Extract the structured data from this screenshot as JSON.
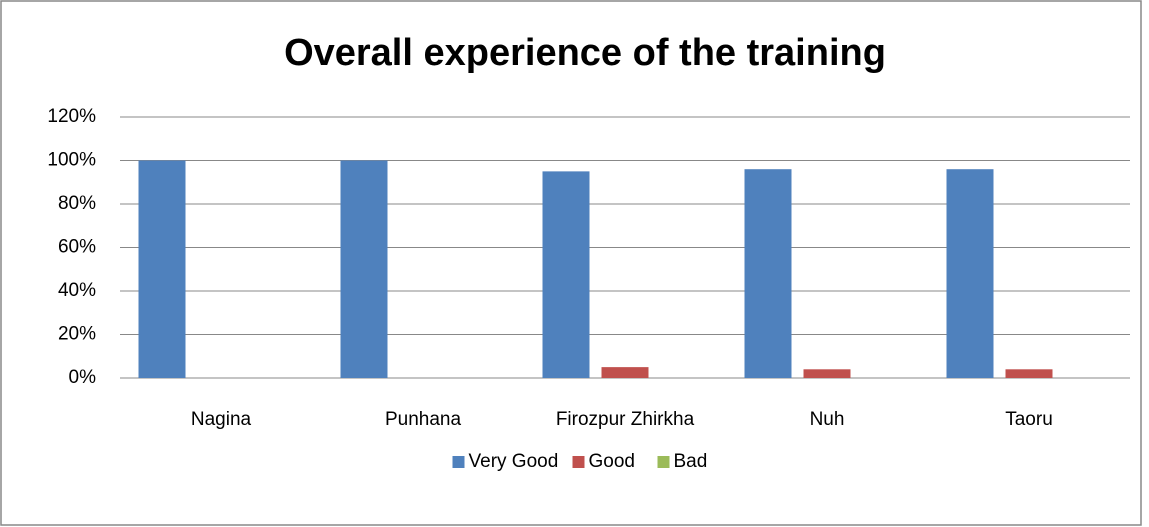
{
  "chart_data": {
    "type": "bar",
    "title": "Overall experience of the training",
    "categories": [
      "Nagina",
      "Punhana",
      "Firozpur Zhirkha",
      "Nuh",
      "Taoru"
    ],
    "series": [
      {
        "name": "Very Good",
        "color": "#4f81bd",
        "values": [
          100,
          100,
          95,
          96,
          96
        ]
      },
      {
        "name": "Good",
        "color": "#c0504d",
        "values": [
          0,
          0,
          5,
          4,
          4
        ]
      },
      {
        "name": "Bad",
        "color": "#9bbb59",
        "values": [
          0,
          0,
          0,
          0,
          0
        ]
      }
    ],
    "ylim": [
      0,
      120
    ],
    "yticks": [
      {
        "value": 0,
        "label": "0%"
      },
      {
        "value": 20,
        "label": "20%"
      },
      {
        "value": 40,
        "label": "40%"
      },
      {
        "value": 60,
        "label": "60%"
      },
      {
        "value": 80,
        "label": "80%"
      },
      {
        "value": 100,
        "label": "100%"
      },
      {
        "value": 120,
        "label": "120%"
      }
    ],
    "grid": true,
    "legend": "bottom"
  }
}
